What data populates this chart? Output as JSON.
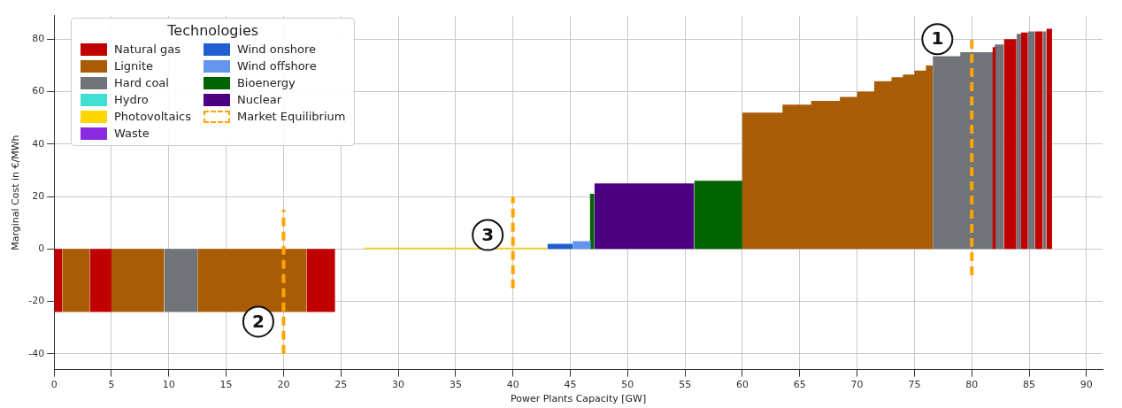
{
  "chart_data": {
    "type": "area",
    "xlabel": "Power Plants Capacity [GW]",
    "ylabel": "Marginal Cost in €/MWh",
    "legend_title": "Technologies",
    "legend": "top left",
    "grid": true,
    "xlim": [
      0,
      91.4
    ],
    "xticks": [
      0,
      5,
      10,
      15,
      20,
      25,
      30,
      35,
      40,
      45,
      50,
      55,
      60,
      65,
      70,
      75,
      80,
      85,
      90
    ],
    "ylim": [
      -46,
      89
    ],
    "yticks": [
      -40,
      -20,
      0,
      20,
      40,
      60,
      80
    ],
    "series": [
      {
        "name": "Natural gas",
        "color": "#c00000",
        "x": [
          0,
          0.7,
          null,
          3.1,
          5,
          null,
          22,
          24.5,
          null,
          81.8,
          82.1,
          null,
          82.8,
          83.9,
          null,
          84.3,
          84.9,
          null,
          85.5,
          86.2,
          null,
          86.5,
          87
        ],
        "values": [
          -24,
          -24,
          null,
          -24,
          -24,
          null,
          -24,
          -24,
          null,
          77,
          77,
          null,
          80,
          80,
          null,
          82.5,
          82.5,
          null,
          83,
          83,
          null,
          84,
          84
        ]
      },
      {
        "name": "Lignite",
        "color": "#a85c06",
        "x": [
          0.7,
          3.1,
          null,
          5,
          9.6,
          null,
          12.5,
          22,
          null,
          60,
          63.5,
          63.5,
          66,
          66,
          68.5,
          68.5,
          70,
          70,
          71.5,
          71.5,
          73,
          73,
          74,
          74,
          75,
          75,
          76,
          76,
          76.6
        ],
        "values": [
          -24,
          -24,
          null,
          -24,
          -24,
          null,
          -24,
          -24,
          null,
          52,
          52,
          55,
          55,
          56.5,
          56.5,
          58,
          58,
          60,
          60,
          64,
          64,
          65.5,
          65.5,
          66.5,
          66.5,
          68,
          68,
          70,
          70
        ]
      },
      {
        "name": "Hard coal",
        "color": "#707478",
        "x": [
          9.6,
          12.5,
          null,
          76.6,
          79,
          79,
          81.9,
          null,
          82,
          82.8,
          null,
          83.9,
          84.3,
          null,
          84.9,
          85.5,
          null,
          86.2,
          86.5
        ],
        "values": [
          -24,
          -24,
          null,
          73.5,
          73.5,
          75,
          75,
          null,
          78,
          78,
          null,
          82,
          82,
          null,
          83,
          83,
          null,
          83,
          83
        ]
      },
      {
        "name": "Hydro",
        "color": "#40e0d0"
      },
      {
        "name": "Photovoltaics",
        "color": "#ffd700",
        "x": [
          27,
          43
        ],
        "values": [
          0.5,
          0.5
        ]
      },
      {
        "name": "Waste",
        "color": "#8a2be2"
      },
      {
        "name": "Wind onshore",
        "color": "#1f5fcf",
        "x": [
          43,
          45.2
        ],
        "values": [
          2,
          2
        ]
      },
      {
        "name": "Wind offshore",
        "color": "#6495ed",
        "x": [
          45.2,
          46.8
        ],
        "values": [
          3,
          3
        ]
      },
      {
        "name": "Bioenergy",
        "color": "#006400",
        "x": [
          46.7,
          47.1,
          null,
          55.8,
          60
        ],
        "values": [
          21,
          21,
          null,
          26,
          26
        ]
      },
      {
        "name": "Nuclear",
        "color": "#4b0082",
        "x": [
          47.1,
          55.8
        ],
        "values": [
          25,
          25
        ]
      },
      {
        "name": "Market Equilibrium",
        "type": "line",
        "line_style": "dashed",
        "color": "#ffa500",
        "x": [
          20,
          20,
          null,
          40,
          40,
          null,
          80,
          80
        ],
        "values": [
          -40,
          15,
          null,
          -15,
          20,
          null,
          -10,
          80
        ]
      }
    ],
    "annotations": [
      {
        "text": "1",
        "x": 77,
        "y": 80
      },
      {
        "text": "2",
        "x": 17.8,
        "y": -27.7
      },
      {
        "text": "3",
        "x": 37.8,
        "y": 5.3
      }
    ]
  }
}
